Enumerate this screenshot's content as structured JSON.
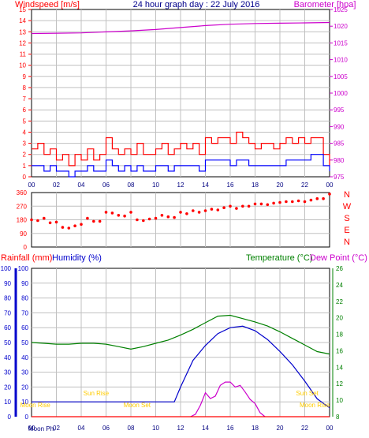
{
  "header": {
    "wind_title": "Windspeed [m/s]",
    "title": "24 hour graph day : 22 July 2016",
    "baro_title": "Barometer [hpa]"
  },
  "colors": {
    "wind_gust": "#ff0000",
    "wind_avg": "#0000ff",
    "barometer": "#cc00cc",
    "direction": "#ff0000",
    "humidity": "#0000cc",
    "temperature": "#008000",
    "dewpoint": "#cc00cc",
    "rainfall": "#ff0000",
    "sun_moon": "#ffcc00",
    "frame": "#000000",
    "grid": "#c0c0c0"
  },
  "chart_data": [
    {
      "type": "line",
      "panel": "wind-barometer",
      "x_ticks": [
        "00",
        "02",
        "04",
        "06",
        "08",
        "10",
        "12",
        "14",
        "16",
        "18",
        "20",
        "22",
        "00"
      ],
      "xlim": [
        0,
        24
      ],
      "ylabel_left": "Windspeed [m/s]",
      "ylim_left": [
        0,
        15
      ],
      "yticks_left": [
        0,
        1,
        2,
        3,
        4,
        5,
        6,
        7,
        8,
        9,
        10,
        11,
        12,
        13,
        14,
        15
      ],
      "ylabel_right": "Barometer [hpa]",
      "ylim_right": [
        975,
        1025
      ],
      "yticks_right": [
        975,
        980,
        985,
        990,
        995,
        1000,
        1005,
        1010,
        1015,
        1020,
        1025
      ],
      "grid": true,
      "series": [
        {
          "name": "Windspeed gust",
          "axis": "left",
          "x": [
            0,
            0.5,
            1,
            1.5,
            2,
            2.5,
            3,
            3.5,
            4,
            4.5,
            5,
            5.5,
            6,
            6.5,
            7,
            7.5,
            8,
            8.5,
            9,
            9.5,
            10,
            10.5,
            11,
            11.5,
            12,
            12.5,
            13,
            13.5,
            14,
            14.5,
            15,
            15.5,
            16,
            16.5,
            17,
            17.5,
            18,
            18.5,
            19,
            19.5,
            20,
            20.5,
            21,
            21.5,
            22,
            22.5,
            23,
            23.5,
            24
          ],
          "values": [
            2.5,
            3,
            2,
            2.5,
            1.5,
            2,
            1,
            2,
            1.5,
            2.5,
            1.5,
            2,
            3.5,
            2.5,
            2,
            2.5,
            2,
            3,
            2,
            2,
            2.5,
            3,
            2,
            2.5,
            3,
            2.5,
            3,
            2,
            3.5,
            3,
            3.5,
            3.5,
            3,
            4,
            3.5,
            3,
            2.5,
            3,
            3,
            2.5,
            3,
            3.5,
            3,
            3.5,
            3,
            3.5,
            3.5,
            2,
            1
          ]
        },
        {
          "name": "Windspeed average",
          "axis": "left",
          "x": [
            0,
            0.5,
            1,
            1.5,
            2,
            2.5,
            3,
            3.5,
            4,
            4.5,
            5,
            5.5,
            6,
            6.5,
            7,
            7.5,
            8,
            8.5,
            9,
            9.5,
            10,
            10.5,
            11,
            11.5,
            12,
            12.5,
            13,
            13.5,
            14,
            14.5,
            15,
            15.5,
            16,
            16.5,
            17,
            17.5,
            18,
            18.5,
            19,
            19.5,
            20,
            20.5,
            21,
            21.5,
            22,
            22.5,
            23,
            23.5,
            24
          ],
          "values": [
            1,
            1,
            0.5,
            1,
            0.5,
            0.5,
            0,
            0.5,
            0.5,
            1,
            0.5,
            0.5,
            1.5,
            1,
            0.5,
            1,
            0.5,
            1,
            0.5,
            0.5,
            1,
            1,
            0.5,
            1,
            1,
            1,
            1,
            0.5,
            1.5,
            1.5,
            1.5,
            1.5,
            1,
            1.5,
            1.5,
            1,
            1,
            1,
            1,
            1,
            1,
            1.5,
            1.5,
            1.5,
            1.5,
            2,
            2,
            1,
            0.5
          ]
        },
        {
          "name": "Barometer",
          "axis": "right",
          "x": [
            0,
            2,
            4,
            6,
            8,
            10,
            12,
            14,
            16,
            18,
            20,
            22,
            24
          ],
          "values": [
            1017.8,
            1017.9,
            1018.0,
            1018.3,
            1018.6,
            1019.0,
            1019.6,
            1020.2,
            1020.6,
            1020.8,
            1020.9,
            1021.0,
            1021.1
          ]
        }
      ]
    },
    {
      "type": "scatter",
      "panel": "wind-direction",
      "x_ticks": [
        "00",
        "02",
        "04",
        "06",
        "08",
        "10",
        "12",
        "14",
        "16",
        "18",
        "20",
        "22",
        "00"
      ],
      "xlim": [
        0,
        24
      ],
      "ylim": [
        0,
        360
      ],
      "yticks": [
        0,
        90,
        180,
        270,
        360
      ],
      "compass_labels": [
        "N",
        "W",
        "S",
        "E",
        "N"
      ],
      "grid": true,
      "series": [
        {
          "name": "Wind direction",
          "x": [
            0,
            0.5,
            1,
            1.5,
            2,
            2.5,
            3,
            3.5,
            4,
            4.5,
            5,
            5.5,
            6,
            6.5,
            7,
            7.5,
            8,
            8.5,
            9,
            9.5,
            10,
            10.5,
            11,
            11.5,
            12,
            12.5,
            13,
            13.5,
            14,
            14.5,
            15,
            15.5,
            16,
            16.5,
            17,
            17.5,
            18,
            18.5,
            19,
            19.5,
            20,
            20.5,
            21,
            21.5,
            22,
            22.5,
            23,
            23.5,
            24
          ],
          "values": [
            180,
            175,
            190,
            160,
            165,
            130,
            125,
            140,
            150,
            190,
            170,
            170,
            230,
            225,
            210,
            205,
            230,
            180,
            175,
            185,
            190,
            210,
            200,
            195,
            230,
            220,
            240,
            230,
            240,
            250,
            245,
            260,
            270,
            255,
            270,
            270,
            285,
            285,
            280,
            290,
            295,
            300,
            300,
            305,
            300,
            310,
            320,
            320,
            350
          ]
        }
      ]
    },
    {
      "type": "line",
      "panel": "rain-humidity-temperature",
      "x_ticks": [
        "00",
        "02",
        "04",
        "06",
        "08",
        "10",
        "12",
        "14",
        "16",
        "18",
        "20",
        "22",
        "00"
      ],
      "xlim": [
        0,
        24
      ],
      "ylabel_left_1": "Rainfall (mm)",
      "ylabel_left_2": "Humidity (%)",
      "ylabel_right_1": "Temperature (°C)",
      "ylabel_right_2": "Dew Point (°C)",
      "ylim_left": [
        0,
        100
      ],
      "yticks_left": [
        0,
        10,
        20,
        30,
        40,
        50,
        60,
        70,
        80,
        90,
        100
      ],
      "ylim_right": [
        8,
        26
      ],
      "yticks_right": [
        8,
        10,
        12,
        14,
        16,
        18,
        20,
        22,
        24,
        26
      ],
      "grid": true,
      "annotations": [
        {
          "label": "Moon Rise",
          "x": 0.3,
          "row": "low"
        },
        {
          "label": "Sun Rise",
          "x": 5.2,
          "row": "high"
        },
        {
          "label": "Moon Set",
          "x": 8.5,
          "row": "low"
        },
        {
          "label": "Sun Set",
          "x": 22.2,
          "row": "high"
        },
        {
          "label": "Moon Rise",
          "x": 22.8,
          "row": "low"
        }
      ],
      "series": [
        {
          "name": "Humidity",
          "axis": "left",
          "x": [
            0,
            1,
            2,
            3,
            4,
            5,
            6,
            7,
            8,
            9,
            10,
            11,
            11.5,
            12,
            13,
            14,
            15,
            16,
            17,
            18,
            19,
            20,
            21,
            22,
            23,
            24
          ],
          "values": [
            10,
            10,
            10,
            10,
            10,
            10,
            10,
            10,
            10,
            10,
            10,
            10,
            10,
            20,
            38,
            48,
            56,
            60,
            61,
            58,
            52,
            44,
            35,
            24,
            12,
            6
          ]
        },
        {
          "name": "Temperature",
          "axis": "right",
          "x": [
            0,
            1,
            2,
            3,
            4,
            5,
            6,
            7,
            8,
            9,
            10,
            11,
            12,
            13,
            14,
            15,
            16,
            17,
            18,
            19,
            20,
            21,
            22,
            23,
            24
          ],
          "values": [
            17.0,
            16.9,
            16.8,
            16.8,
            16.9,
            16.9,
            16.8,
            16.5,
            16.2,
            16.5,
            16.9,
            17.3,
            17.9,
            18.6,
            19.4,
            20.2,
            20.3,
            19.9,
            19.5,
            19.0,
            18.3,
            17.5,
            16.7,
            15.9,
            15.6
          ]
        },
        {
          "name": "Dew Point",
          "axis": "right",
          "x": [
            12.8,
            13.2,
            13.6,
            14,
            14.4,
            14.8,
            15.2,
            15.6,
            16,
            16.4,
            16.8,
            17.2,
            17.6,
            18,
            18.4,
            18.8
          ],
          "values": [
            8,
            8.3,
            9.4,
            10.9,
            10.2,
            10.5,
            11.8,
            12.2,
            12.2,
            11.6,
            11.8,
            11.0,
            10.1,
            9.6,
            8.5,
            8
          ]
        },
        {
          "name": "Rainfall",
          "axis": "left",
          "x": [
            0,
            24
          ],
          "values": [
            0,
            0
          ]
        }
      ]
    }
  ]
}
